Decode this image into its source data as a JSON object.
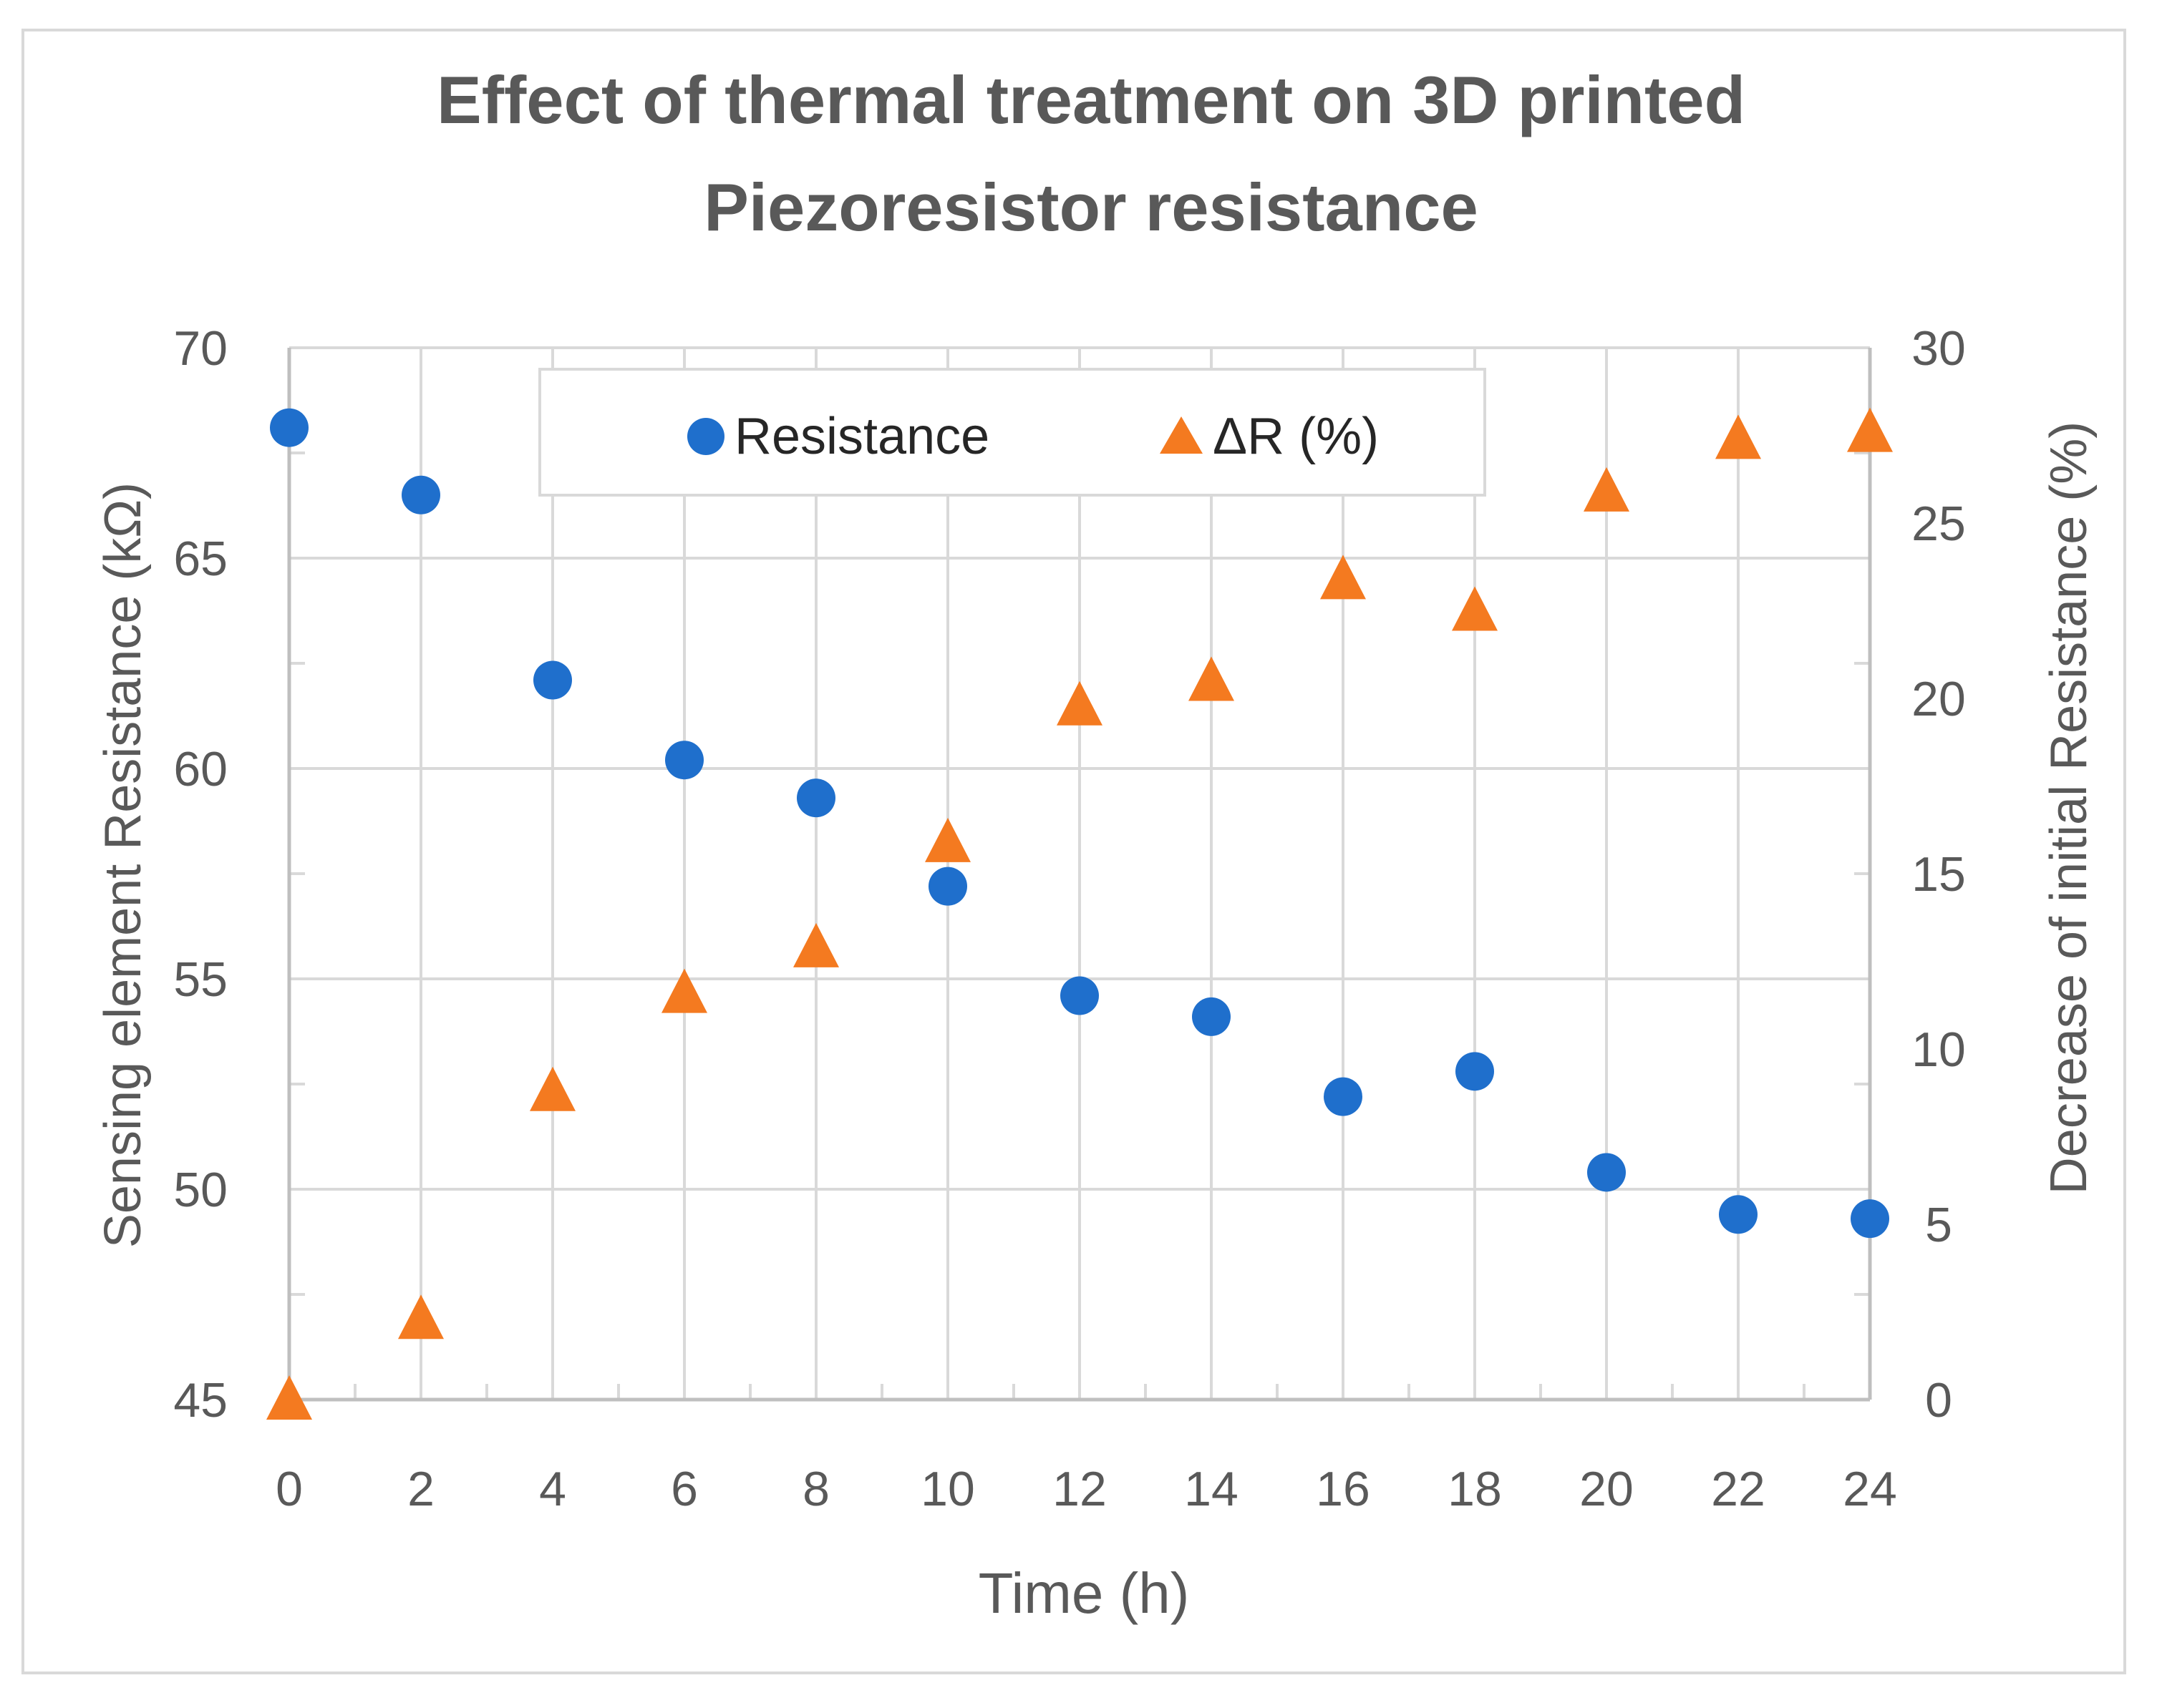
{
  "chart_data": {
    "type": "scatter",
    "title": "Effect of thermal treatment on 3D printed Piezoresistor resistance",
    "title_lines": [
      "Effect of thermal treatment on 3D printed",
      "Piezoresistor resistance"
    ],
    "xlabel": "Time (h)",
    "ylabel": "Sensing element Resistance (kΩ)",
    "y2label": "Decrease of initial Resistance (%)",
    "xlim": [
      0,
      24
    ],
    "ylim": [
      45,
      70
    ],
    "y2lim": [
      0,
      30
    ],
    "x": [
      0,
      2,
      4,
      6,
      8,
      10,
      12,
      14,
      16,
      18,
      20,
      22,
      24
    ],
    "x_ticks": [
      "0",
      "2",
      "4",
      "6",
      "8",
      "10",
      "12",
      "14",
      "16",
      "18",
      "20",
      "22",
      "24"
    ],
    "y_ticks": [
      "45",
      "50",
      "55",
      "60",
      "65",
      "70"
    ],
    "y2_ticks": [
      "0",
      "5",
      "10",
      "15",
      "20",
      "25",
      "30"
    ],
    "grid": true,
    "legend_position": "top",
    "series": [
      {
        "name": "Resistance",
        "axis": "left",
        "marker": "circle",
        "color": "#1f6fcc",
        "values": [
          68.1,
          66.5,
          62.1,
          60.2,
          59.3,
          57.2,
          54.6,
          54.1,
          52.2,
          52.8,
          50.4,
          49.4,
          49.3
        ]
      },
      {
        "name": "ΔR (%)",
        "axis": "right",
        "marker": "triangle",
        "color": "#f47a20",
        "values": [
          0.0,
          2.3,
          8.8,
          11.6,
          12.9,
          15.9,
          19.8,
          20.5,
          23.4,
          22.5,
          25.9,
          27.4,
          27.6
        ]
      }
    ]
  }
}
